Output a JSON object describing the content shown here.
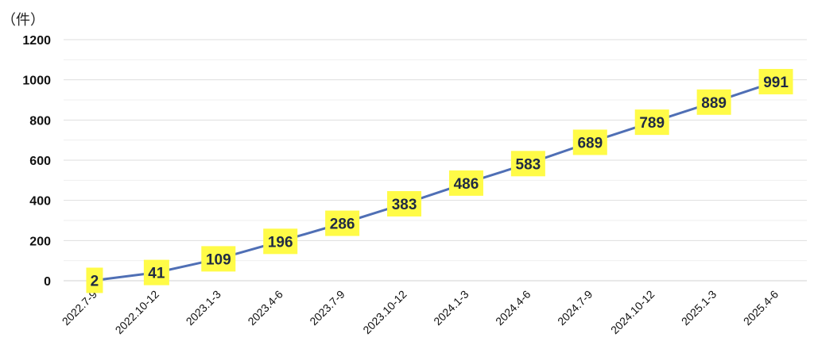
{
  "chart_data": {
    "type": "line",
    "unit_label": "（件）",
    "categories": [
      "2022.7-9",
      "2022.10-12",
      "2023.1-3",
      "2023.4-6",
      "2023.7-9",
      "2023.10-12",
      "2024.1-3",
      "2024.4-6",
      "2024.7-9",
      "2024.10-12",
      "2025.1-3",
      "2025.4-6"
    ],
    "series": [
      {
        "values": [
          2,
          41,
          109,
          196,
          286,
          383,
          486,
          583,
          689,
          789,
          889,
          991
        ],
        "color": "#4f6fb5"
      }
    ],
    "ylim": [
      0,
      1200
    ],
    "yticks": [
      0,
      200,
      400,
      600,
      800,
      1000,
      1200
    ],
    "grid": true,
    "data_label_bg": "#fffb47",
    "legend": "none"
  }
}
